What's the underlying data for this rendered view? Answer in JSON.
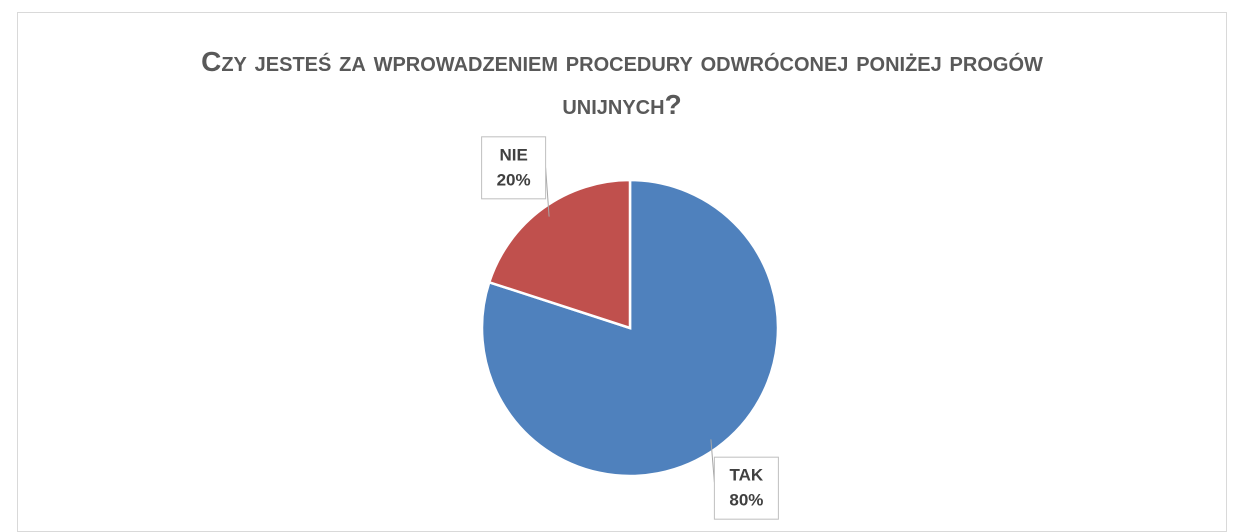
{
  "chart_data": {
    "type": "pie",
    "title": "Czy jesteś za wprowadzeniem procedury odwróconej poniżej progów unijnych?",
    "categories": [
      "TAK",
      "NIE"
    ],
    "values": [
      80,
      20
    ],
    "value_labels": [
      "80%",
      "20%"
    ],
    "colors": [
      "#4f81bd",
      "#c0504d"
    ]
  }
}
